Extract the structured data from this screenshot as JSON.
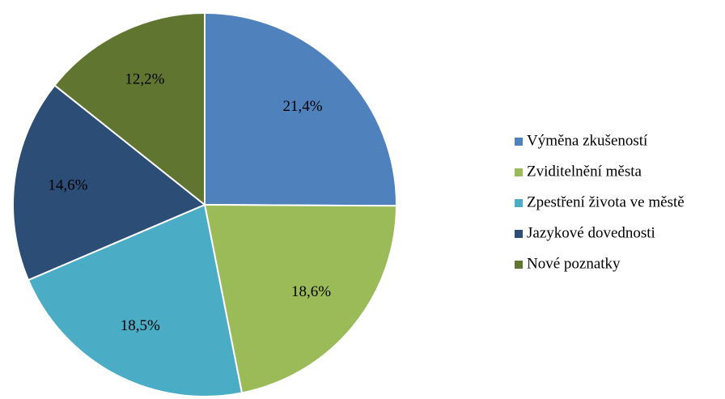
{
  "chart_data": {
    "type": "pie",
    "categories": [
      "Výměna zkušeností",
      "Zviditelnění města",
      "Zpestření života ve městě",
      "Jazykové dovednosti",
      "Nové poznatky"
    ],
    "values": [
      21.4,
      18.6,
      18.5,
      14.6,
      12.2
    ],
    "value_labels": [
      "21,4%",
      "18,6%",
      "18,5%",
      "14,6%",
      "12,2%"
    ],
    "colors": [
      "#4f81bd",
      "#9bbb59",
      "#4bacc6",
      "#2c4d75",
      "#5f7530"
    ],
    "legend": "right"
  }
}
